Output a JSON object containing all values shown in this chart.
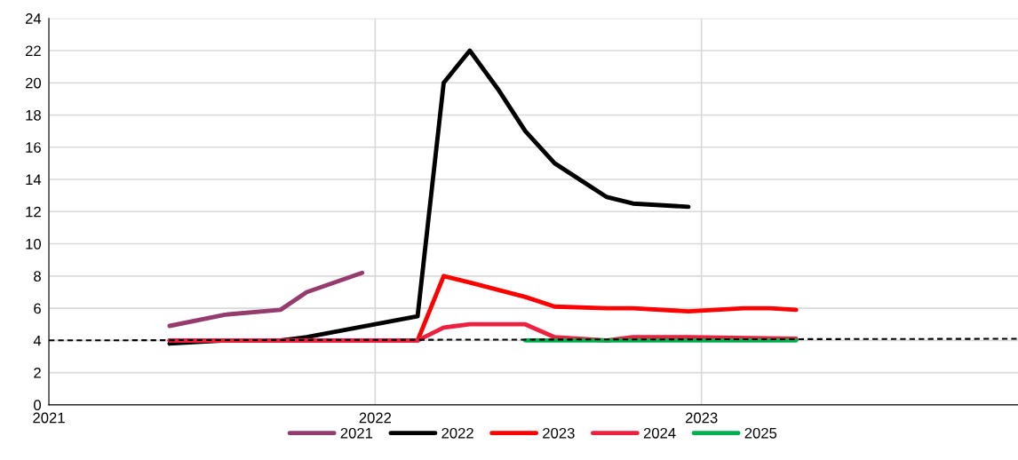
{
  "chart_data": {
    "type": "line",
    "xlim": [
      2021,
      2023.97
    ],
    "xticks": [
      2021,
      2022,
      2023
    ],
    "ylim": [
      0,
      24
    ],
    "yticks": [
      0,
      2,
      4,
      6,
      8,
      10,
      12,
      14,
      16,
      18,
      20,
      22,
      24
    ],
    "grid": true,
    "legend": "bottom",
    "marker": "none",
    "series": [
      {
        "name": "2021",
        "color": "#953b6e",
        "x": [
          2021.37,
          2021.54,
          2021.71,
          2021.79,
          2021.96
        ],
        "values": [
          4.9,
          5.6,
          5.9,
          7.0,
          8.2
        ]
      },
      {
        "name": "2022",
        "color": "#000000",
        "x": [
          2021.37,
          2021.54,
          2021.71,
          2021.79,
          2021.96,
          2022.13,
          2022.21,
          2022.29,
          2022.38,
          2022.46,
          2022.55,
          2022.71,
          2022.79,
          2022.96
        ],
        "values": [
          3.8,
          4.0,
          4.0,
          4.2,
          4.85,
          5.5,
          20.0,
          22.0,
          19.5,
          17.0,
          15.0,
          12.9,
          12.5,
          12.3
        ]
      },
      {
        "name": "2023",
        "color": "#ff0000",
        "x": [
          2021.37,
          2022.13,
          2022.21,
          2022.29,
          2022.46,
          2022.55,
          2022.71,
          2022.79,
          2022.96,
          2023.13,
          2023.21,
          2023.29
        ],
        "values": [
          4.0,
          4.0,
          8.0,
          7.6,
          6.7,
          6.1,
          6.0,
          6.0,
          5.8,
          6.0,
          6.0,
          5.9
        ]
      },
      {
        "name": "2024",
        "color": "#ee2040",
        "x": [
          2021.37,
          2022.13,
          2022.21,
          2022.29,
          2022.46,
          2022.55,
          2022.71,
          2022.79,
          2022.96,
          2023.29
        ],
        "values": [
          4.0,
          4.0,
          4.8,
          5.0,
          5.0,
          4.2,
          4.0,
          4.2,
          4.2,
          4.1
        ]
      },
      {
        "name": "2025",
        "color": "#00b050",
        "x": [
          2022.46,
          2023.29
        ],
        "values": [
          4.0,
          4.0
        ]
      },
      {
        "color": "#000000",
        "line_style": "dashed",
        "x": [
          2021,
          2023.97
        ],
        "values": [
          4.0,
          4.1
        ]
      }
    ]
  }
}
